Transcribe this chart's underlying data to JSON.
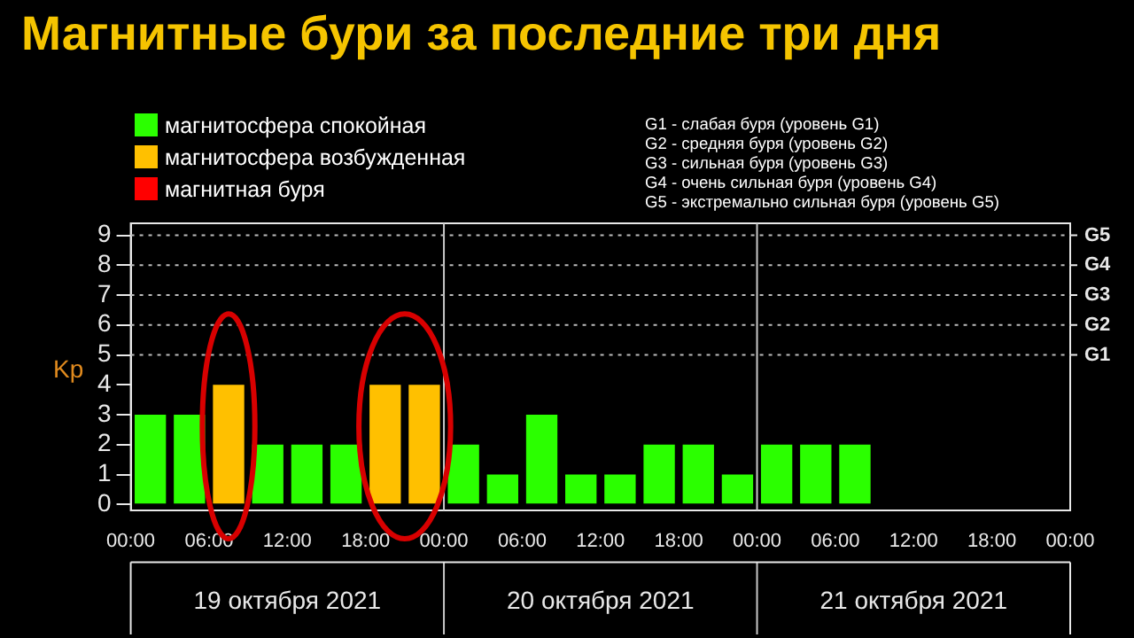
{
  "chart_data": {
    "type": "bar",
    "title": "Магнитные бури за последние три дня",
    "ylabel": "Kp",
    "x": [
      "2021-10-19T01:30",
      "2021-10-19T04:30",
      "2021-10-19T07:30",
      "2021-10-19T10:30",
      "2021-10-19T13:30",
      "2021-10-19T16:30",
      "2021-10-19T19:30",
      "2021-10-19T22:30",
      "2021-10-20T01:30",
      "2021-10-20T04:30",
      "2021-10-20T07:30",
      "2021-10-20T10:30",
      "2021-10-20T13:30",
      "2021-10-20T16:30",
      "2021-10-20T19:30",
      "2021-10-20T22:30",
      "2021-10-21T01:30",
      "2021-10-21T04:30",
      "2021-10-21T07:30"
    ],
    "series": [
      {
        "name": "магнитосфера спокойная",
        "color": "#2bff00",
        "values": [
          3,
          3,
          null,
          2,
          2,
          2,
          null,
          null,
          2,
          1,
          3,
          1,
          1,
          2,
          2,
          1,
          2,
          2,
          2
        ]
      },
      {
        "name": "магнитосфера возбужденная",
        "color": "#ffc000",
        "values": [
          null,
          null,
          4,
          null,
          null,
          null,
          4,
          4,
          null,
          null,
          null,
          null,
          null,
          null,
          null,
          null,
          null,
          null,
          null
        ]
      },
      {
        "name": "магнитная буря",
        "color": "#ff0000",
        "values": [
          null,
          null,
          null,
          null,
          null,
          null,
          null,
          null,
          null,
          null,
          null,
          null,
          null,
          null,
          null,
          null,
          null,
          null,
          null
        ]
      }
    ],
    "stacked": true,
    "xlim": [
      "2021-10-19T00:00",
      "2021-10-22T00:00"
    ],
    "xticks": [
      {
        "value": "2021-10-19T00:00",
        "label": "00:00"
      },
      {
        "value": "2021-10-19T06:00",
        "label": "06:00"
      },
      {
        "value": "2021-10-19T12:00",
        "label": "12:00"
      },
      {
        "value": "2021-10-19T18:00",
        "label": "18:00"
      },
      {
        "value": "2021-10-20T00:00",
        "label": "00:00"
      },
      {
        "value": "2021-10-20T06:00",
        "label": "06:00"
      },
      {
        "value": "2021-10-20T12:00",
        "label": "12:00"
      },
      {
        "value": "2021-10-20T18:00",
        "label": "18:00"
      },
      {
        "value": "2021-10-21T00:00",
        "label": "00:00"
      },
      {
        "value": "2021-10-21T06:00",
        "label": "06:00"
      },
      {
        "value": "2021-10-21T12:00",
        "label": "12:00"
      },
      {
        "value": "2021-10-21T18:00",
        "label": "18:00"
      },
      {
        "value": "2021-10-22T00:00",
        "label": "00:00"
      }
    ],
    "x2lim": [
      "2021-10-19T00:00",
      "2021-10-22T00:00"
    ],
    "x2ticks": [
      {
        "value": "2021-10-19T12:00",
        "label": "19 октября 2021"
      },
      {
        "value": "2021-10-20T12:00",
        "label": "20 октября 2021"
      },
      {
        "value": "2021-10-21T12:00",
        "label": "21 октября 2021"
      }
    ],
    "ylim": [
      -0.2,
      9.4
    ],
    "yticks": [
      0,
      1,
      2,
      3,
      4,
      5,
      6,
      7,
      8,
      9
    ],
    "legend": "top left",
    "ref_lines": [
      {
        "axis": "x",
        "value": "2021-10-20T00:00",
        "color": "#c8c8c8"
      },
      {
        "axis": "x",
        "value": "2021-10-21T00:00",
        "color": "#c8c8c8"
      },
      {
        "axis": "y",
        "value": 5,
        "label": "G1",
        "color": "#bbbbbb",
        "line_style": "dotted"
      },
      {
        "axis": "y",
        "value": 6,
        "label": "G2",
        "color": "#bbbbbb",
        "line_style": "dotted"
      },
      {
        "axis": "y",
        "value": 7,
        "label": "G3",
        "color": "#bbbbbb",
        "line_style": "dotted"
      },
      {
        "axis": "y",
        "value": 8,
        "label": "G4",
        "color": "#bbbbbb",
        "line_style": "dotted"
      },
      {
        "axis": "y",
        "value": 9,
        "label": "G5",
        "color": "#bbbbbb",
        "line_style": "dotted"
      }
    ],
    "annotations": [
      "G1 - слабая буря (уровень G1)",
      "G2 - средняя буря (уровень G2)",
      "G3 - сильная буря (уровень G3)",
      "G4 - очень сильная буря (уровень G4)",
      "G5 - экстремально сильная буря (уровень G5)"
    ]
  }
}
